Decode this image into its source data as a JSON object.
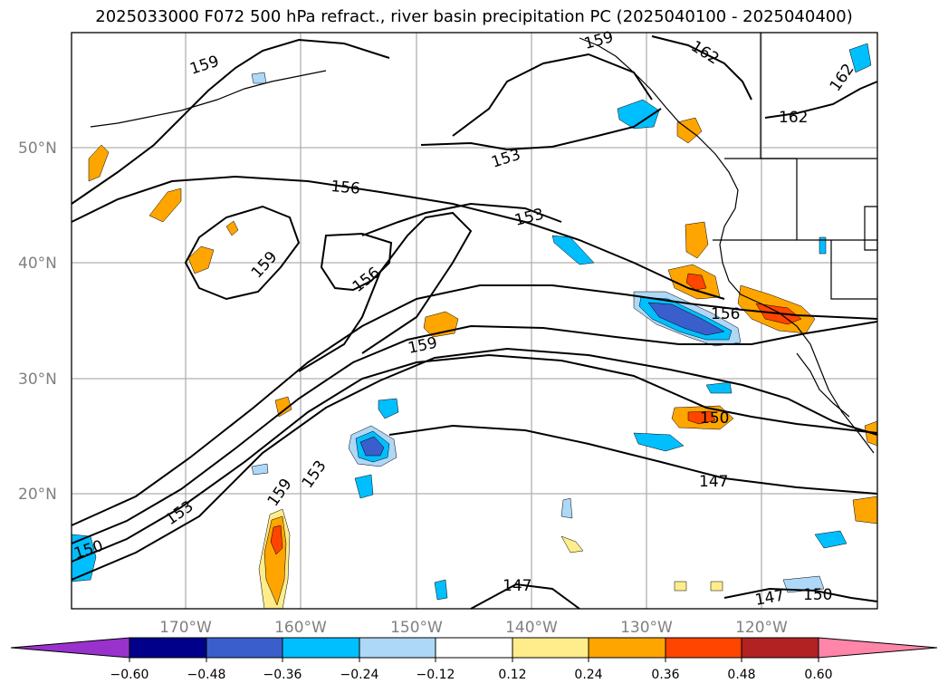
{
  "title": "2025033000 F072 500 hPa refract., river basin precipitation PC (2025040100 - 2025040400)",
  "map": {
    "lat_labels": [
      "50°N",
      "40°N",
      "30°N",
      "20°N"
    ],
    "lon_labels": [
      "170°W",
      "160°W",
      "150°W",
      "140°W",
      "130°W",
      "120°W"
    ],
    "contour_labels": [
      "159",
      "159",
      "162",
      "162",
      "162",
      "153",
      "156",
      "153",
      "159",
      "156",
      "156",
      "159",
      "150",
      "147",
      "153",
      "159",
      "153",
      "150",
      "147",
      "147",
      "150"
    ]
  },
  "colorbar": {
    "ticks": [
      "−0.60",
      "−0.48",
      "−0.36",
      "−0.24",
      "−0.12",
      "0.12",
      "0.24",
      "0.36",
      "0.48",
      "0.60"
    ],
    "colors": [
      "#9932cc",
      "#00008b",
      "#3a5fcd",
      "#00bfff",
      "#add8f7",
      "#ffffff",
      "#ffec8b",
      "#ffa500",
      "#ff4500",
      "#b22222",
      "#ff85a9"
    ]
  },
  "colors": {
    "contour": "#000000",
    "grid": "#b0b0b0",
    "axis_label": "#808080"
  }
}
